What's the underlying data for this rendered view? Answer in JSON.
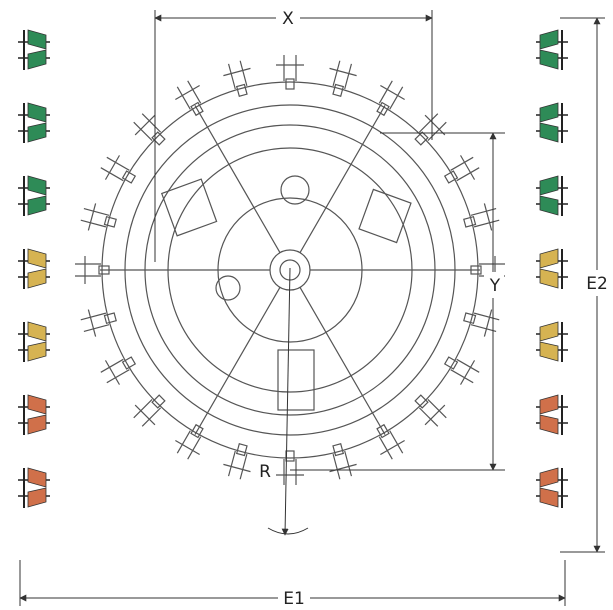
{
  "labels": {
    "x": "X",
    "y": "Y",
    "r": "R",
    "e1": "E1",
    "e2": "E2"
  }
}
